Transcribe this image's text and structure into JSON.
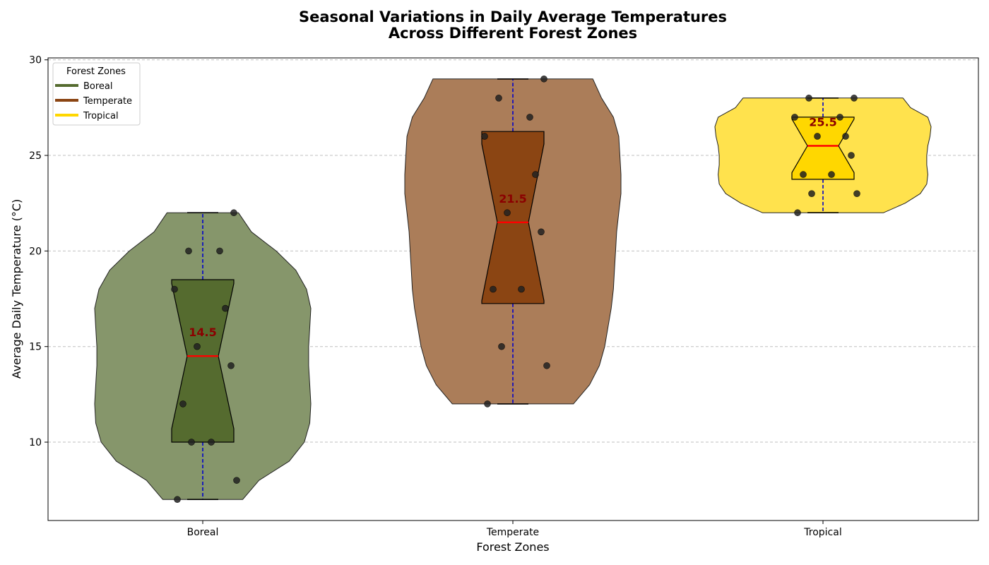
{
  "chart_data": {
    "type": "violin",
    "title_lines": [
      "Seasonal Variations in Daily Average Temperatures",
      "Across Different Forest Zones"
    ],
    "xlabel": "Forest Zones",
    "ylabel": "Average Daily Temperature (°C)",
    "ylim": [
      5.9,
      30.1
    ],
    "yticks": [
      10,
      15,
      20,
      25,
      30
    ],
    "grid": "y-dashed",
    "legend": {
      "title": "Forest Zones",
      "placement": "top-left",
      "entries": [
        "Boreal",
        "Temperate",
        "Tropical"
      ]
    },
    "categories": [
      "Boreal",
      "Temperate",
      "Tropical"
    ],
    "series": [
      {
        "name": "Boreal",
        "color": "#556b2f",
        "violin_color": "#86966b",
        "values": [
          7,
          8,
          10,
          10,
          12,
          14,
          15,
          17,
          18,
          20,
          20,
          22
        ],
        "median": 14.5,
        "median_label": "14.5",
        "q1": 10,
        "q3": 18.5,
        "whisker_low": 7,
        "whisker_high": 22,
        "notch_low": 10.7,
        "notch_high": 18.3,
        "violin_profile": [
          [
            7,
            0.37
          ],
          [
            8,
            0.52
          ],
          [
            9,
            0.8
          ],
          [
            10,
            0.94
          ],
          [
            11,
            0.99
          ],
          [
            12,
            1
          ],
          [
            13,
            0.99
          ],
          [
            14,
            0.98
          ],
          [
            15,
            0.98
          ],
          [
            16,
            0.99
          ],
          [
            17,
            1
          ],
          [
            18,
            0.96
          ],
          [
            19,
            0.86
          ],
          [
            20,
            0.68
          ],
          [
            21,
            0.45
          ],
          [
            22,
            0.33
          ]
        ]
      },
      {
        "name": "Temperate",
        "color": "#8b4513",
        "violin_color": "#ab7d59",
        "values": [
          12,
          14,
          15,
          18,
          18,
          21,
          22,
          24,
          26,
          27,
          28,
          29
        ],
        "median": 21.5,
        "median_label": "21.5",
        "q1": 17.25,
        "q3": 26.25,
        "whisker_low": 12,
        "whisker_high": 29,
        "notch_low": 17.4,
        "notch_high": 25.6,
        "violin_profile": [
          [
            12,
            0.56
          ],
          [
            13,
            0.71
          ],
          [
            14,
            0.8
          ],
          [
            15,
            0.85
          ],
          [
            16,
            0.88
          ],
          [
            17,
            0.91
          ],
          [
            18,
            0.93
          ],
          [
            19,
            0.94
          ],
          [
            20,
            0.95
          ],
          [
            21,
            0.96
          ],
          [
            22,
            0.98
          ],
          [
            23,
            1
          ],
          [
            24,
            1
          ],
          [
            25,
            0.99
          ],
          [
            26,
            0.98
          ],
          [
            27,
            0.93
          ],
          [
            28,
            0.82
          ],
          [
            29,
            0.74
          ]
        ]
      },
      {
        "name": "Tropical",
        "color": "#ffd700",
        "violin_color": "#ffe24d",
        "values": [
          22,
          23,
          23,
          24,
          24,
          25,
          26,
          26,
          27,
          27,
          28,
          28
        ],
        "median": 25.5,
        "median_label": "25.5",
        "q1": 23.75,
        "q3": 27,
        "whisker_low": 22,
        "whisker_high": 28,
        "notch_low": 24.1,
        "notch_high": 26.9,
        "violin_profile": [
          [
            22,
            0.56
          ],
          [
            22.5,
            0.76
          ],
          [
            23,
            0.9
          ],
          [
            23.5,
            0.96
          ],
          [
            24,
            0.97
          ],
          [
            24.5,
            0.96
          ],
          [
            25,
            0.96
          ],
          [
            25.5,
            0.97
          ],
          [
            26,
            0.99
          ],
          [
            26.5,
            1
          ],
          [
            27,
            0.97
          ],
          [
            27.5,
            0.81
          ],
          [
            28,
            0.74
          ]
        ]
      }
    ]
  }
}
